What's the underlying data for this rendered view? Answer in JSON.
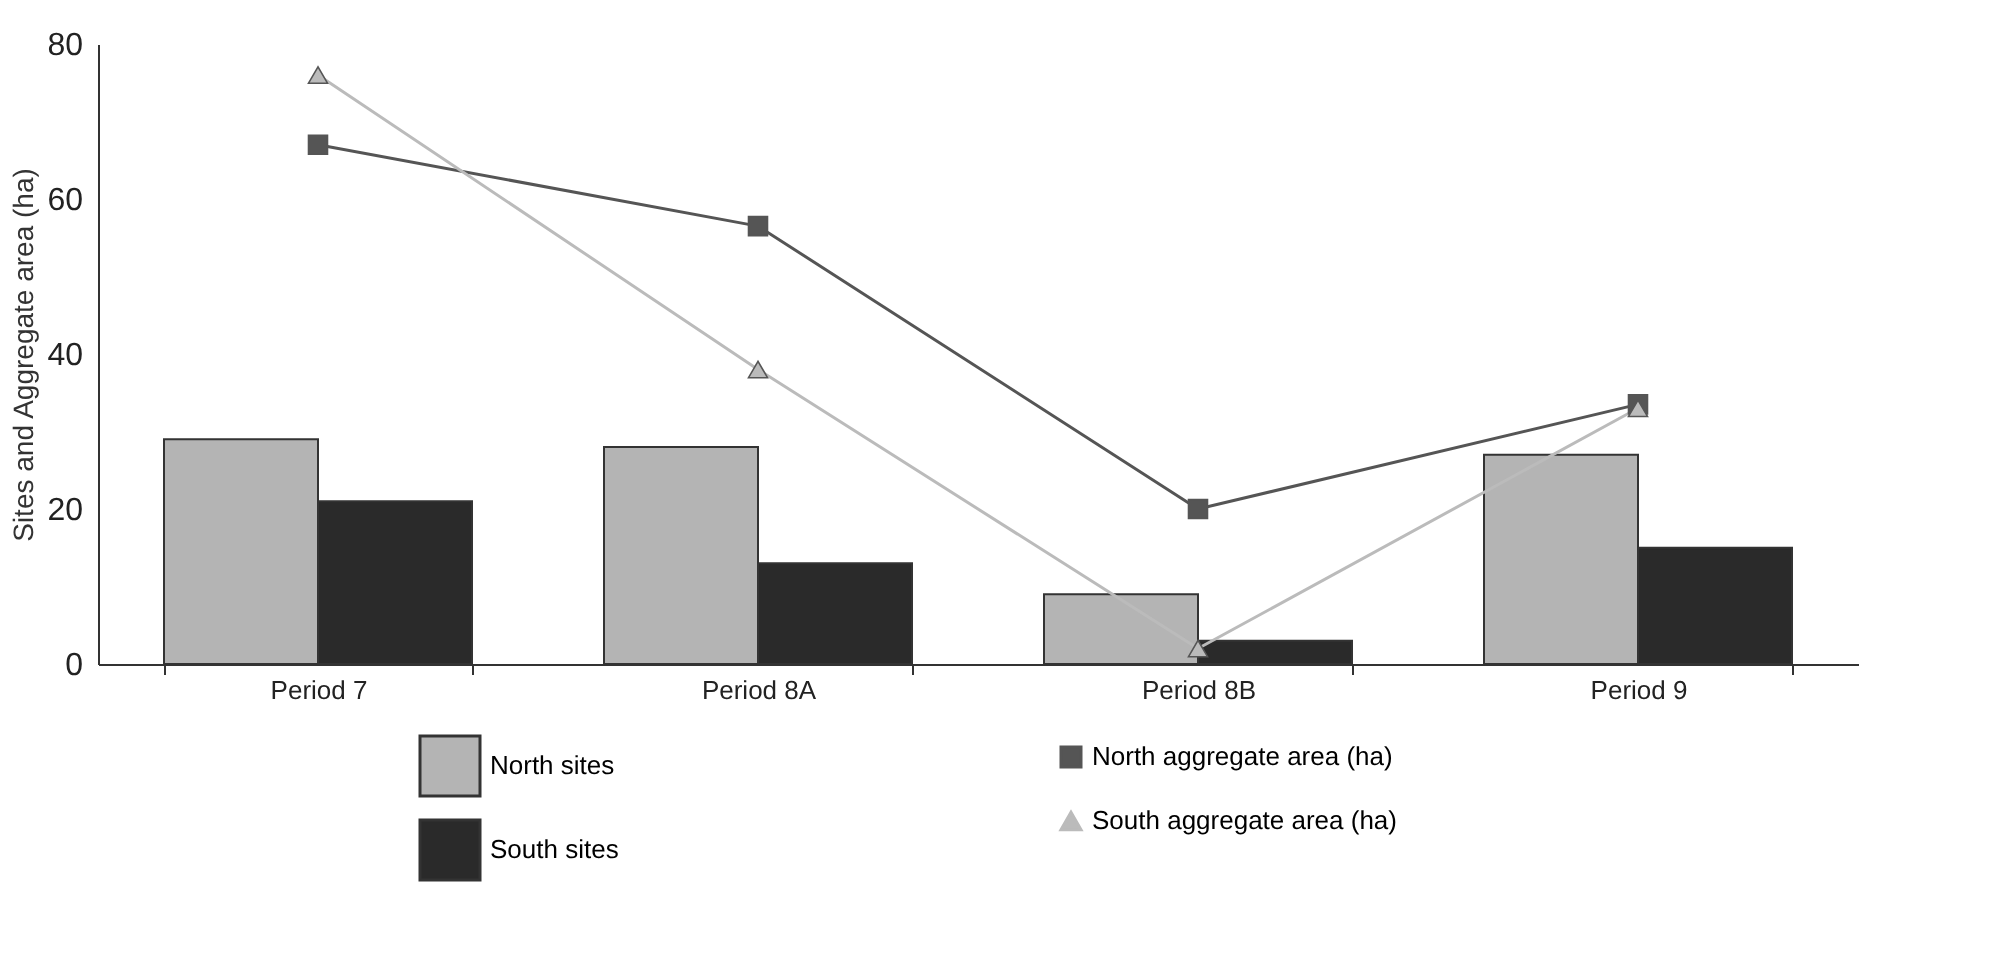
{
  "chart_data": {
    "type": "bar",
    "ylabel": "Sites and Aggregate area (ha)",
    "categories": [
      "Period 7",
      "Period 8A",
      "Period 8B",
      "Period 9"
    ],
    "ylim": [
      0,
      80
    ],
    "yticks": [
      0,
      20,
      40,
      60,
      80
    ],
    "legend": "bottom",
    "series": [
      {
        "name": "North sites",
        "color": "#b4b4b4",
        "values": [
          29,
          28,
          9,
          27
        ]
      },
      {
        "name": "South sites",
        "color": "#2a2a2a",
        "values": [
          21,
          13,
          3,
          15
        ]
      },
      {
        "name": "North aggregate area (ha)",
        "type": "line",
        "marker": "square",
        "color": "#555555",
        "values": [
          67,
          56.5,
          20,
          33.5
        ]
      },
      {
        "name": "South aggregate area (ha)",
        "type": "line",
        "marker": "triangle",
        "color": "#bbbbbb",
        "values": [
          76,
          38,
          2,
          33
        ]
      }
    ]
  }
}
